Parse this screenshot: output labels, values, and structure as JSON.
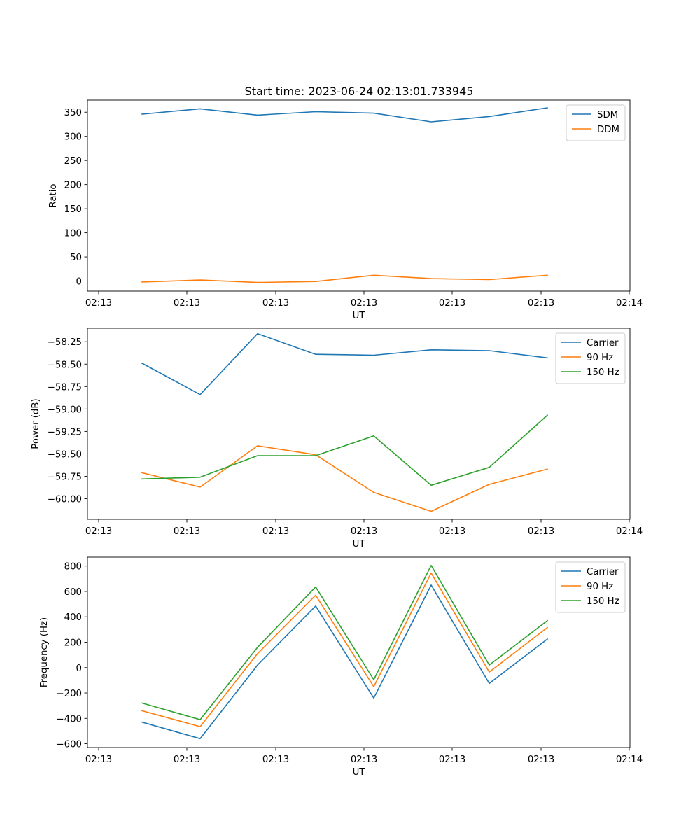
{
  "figure": {
    "title": "Start time: 2023-06-24 02:13:01.733945"
  },
  "chart_data": [
    {
      "type": "line",
      "title": "Start time: 2023-06-24 02:13:01.733945",
      "xlabel": "UT",
      "ylabel": "Ratio",
      "x_tick_labels": [
        "02:13",
        "02:13",
        "02:13",
        "02:13",
        "02:13",
        "02:13",
        "02:14"
      ],
      "y_ticks": [
        0,
        50,
        100,
        150,
        200,
        250,
        300,
        350
      ],
      "y_tick_labels": [
        "0",
        "50",
        "100",
        "150",
        "200",
        "250",
        "300",
        "350"
      ],
      "ylim": [
        -21,
        375
      ],
      "legend": "top-right",
      "grid": false,
      "series": [
        {
          "name": "SDM",
          "color": "#1f77b4",
          "values": [
            346,
            357,
            344,
            351,
            348,
            330,
            341,
            359
          ]
        },
        {
          "name": "DDM",
          "color": "#ff7f0e",
          "values": [
            -2,
            2,
            -3,
            -1,
            12,
            5,
            3,
            12
          ]
        }
      ]
    },
    {
      "type": "line",
      "title": "",
      "xlabel": "UT",
      "ylabel": "Power (dB)",
      "x_tick_labels": [
        "02:13",
        "02:13",
        "02:13",
        "02:13",
        "02:13",
        "02:13",
        "02:14"
      ],
      "y_ticks": [
        -60.0,
        -59.75,
        -59.5,
        -59.25,
        -59.0,
        -58.75,
        -58.5,
        -58.25
      ],
      "y_tick_labels": [
        "−60.00",
        "−59.75",
        "−59.50",
        "−59.25",
        "−59.00",
        "−58.75",
        "−58.50",
        "−58.25"
      ],
      "ylim": [
        -60.23,
        -58.1
      ],
      "legend": "top-right",
      "grid": false,
      "series": [
        {
          "name": "Carrier",
          "color": "#1f77b4",
          "values": [
            -58.49,
            -58.84,
            -58.16,
            -58.39,
            -58.4,
            -58.34,
            -58.35,
            -58.43
          ]
        },
        {
          "name": "90 Hz",
          "color": "#ff7f0e",
          "values": [
            -59.71,
            -59.87,
            -59.41,
            -59.51,
            -59.93,
            -60.14,
            -59.84,
            -59.67
          ]
        },
        {
          "name": "150 Hz",
          "color": "#2ca02c",
          "values": [
            -59.78,
            -59.76,
            -59.52,
            -59.52,
            -59.3,
            -59.85,
            -59.65,
            -59.07
          ]
        }
      ]
    },
    {
      "type": "line",
      "title": "",
      "xlabel": "UT",
      "ylabel": "Frequency (Hz)",
      "x_tick_labels": [
        "02:13",
        "02:13",
        "02:13",
        "02:13",
        "02:13",
        "02:13",
        "02:14"
      ],
      "y_ticks": [
        -600,
        -400,
        -200,
        0,
        200,
        400,
        600,
        800
      ],
      "y_tick_labels": [
        "−600",
        "−400",
        "−200",
        "0",
        "200",
        "400",
        "600",
        "800"
      ],
      "ylim": [
        -630,
        870
      ],
      "legend": "top-right",
      "grid": false,
      "series": [
        {
          "name": "Carrier",
          "color": "#1f77b4",
          "values": [
            -430,
            -560,
            20,
            485,
            -240,
            650,
            -125,
            225
          ]
        },
        {
          "name": "90 Hz",
          "color": "#ff7f0e",
          "values": [
            -340,
            -465,
            110,
            570,
            -150,
            745,
            -35,
            315
          ]
        },
        {
          "name": "150 Hz",
          "color": "#2ca02c",
          "values": [
            -280,
            -410,
            160,
            635,
            -95,
            805,
            20,
            370
          ]
        }
      ]
    }
  ]
}
